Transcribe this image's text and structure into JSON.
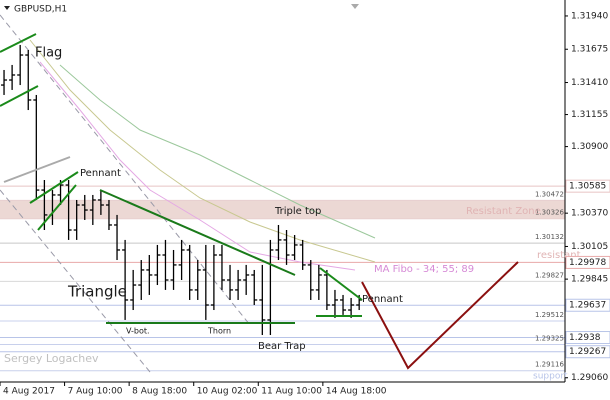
{
  "chart_data": {
    "type": "ohlc",
    "title": "GBPUSD,H1",
    "color": "#000000",
    "x": [
      2,
      6,
      10,
      14,
      18,
      22,
      26,
      30,
      34,
      38,
      42,
      46,
      50,
      54,
      58,
      62,
      66,
      70,
      74,
      78,
      82,
      86,
      90,
      94,
      98,
      102,
      106,
      110,
      114,
      118,
      122,
      126,
      130,
      134,
      138,
      142,
      146,
      150,
      154,
      158,
      162,
      166,
      170,
      174,
      178
    ],
    "open": [
      1.3139,
      1.3143,
      1.3147,
      1.31629,
      1.31271,
      1.30554,
      1.30356,
      1.30515,
      1.30594,
      1.30236,
      1.30435,
      1.30395,
      1.30475,
      1.30435,
      1.30276,
      1.30077,
      1.29679,
      1.29798,
      1.29918,
      1.29878,
      1.30037,
      1.29838,
      1.29958,
      1.30077,
      1.29759,
      1.29918,
      1.29639,
      1.30037,
      1.29838,
      1.29759,
      1.29838,
      1.29878,
      1.29679,
      1.2952,
      1.30077,
      1.30157,
      1.30037,
      1.30117,
      1.29958,
      1.29759,
      1.29878,
      1.29639,
      1.29679,
      1.29599,
      1.29639
    ],
    "high": [
      1.3151,
      1.3155,
      1.31709,
      1.31669,
      1.31311,
      1.30634,
      1.30554,
      1.30634,
      1.30634,
      1.30475,
      1.30515,
      1.30515,
      1.30554,
      1.30475,
      1.30356,
      1.30157,
      1.29918,
      1.29997,
      1.30037,
      1.30117,
      1.30157,
      1.30077,
      1.30157,
      1.30117,
      1.29997,
      1.30117,
      1.30117,
      1.30117,
      1.29958,
      1.29918,
      1.29958,
      1.29918,
      1.29958,
      1.30157,
      1.30276,
      1.30236,
      1.30196,
      1.30157,
      1.29997,
      1.29958,
      1.29918,
      1.29759,
      1.29719,
      1.29695,
      1.29719
    ],
    "low": [
      1.31311,
      1.31351,
      1.3139,
      1.31191,
      1.30475,
      1.30236,
      1.30276,
      1.30435,
      1.30157,
      1.30157,
      1.30316,
      1.30276,
      1.30356,
      1.30236,
      1.29997,
      1.2952,
      1.29599,
      1.29679,
      1.29719,
      1.29798,
      1.29759,
      1.29759,
      1.29838,
      1.29679,
      1.29679,
      1.2952,
      1.29599,
      1.29759,
      1.29679,
      1.29679,
      1.29719,
      1.29639,
      1.294,
      1.294,
      1.29997,
      1.29958,
      1.29997,
      1.29918,
      1.29679,
      1.29679,
      1.29599,
      1.29536,
      1.2956,
      1.29536,
      1.29599
    ],
    "close": [
      1.3143,
      1.3147,
      1.31629,
      1.31271,
      1.30554,
      1.30356,
      1.30515,
      1.30594,
      1.30236,
      1.30435,
      1.30395,
      1.30475,
      1.30435,
      1.30276,
      1.30077,
      1.29679,
      1.29798,
      1.29918,
      1.29878,
      1.30037,
      1.29838,
      1.29958,
      1.30077,
      1.29759,
      1.29918,
      1.29639,
      1.30037,
      1.29838,
      1.29759,
      1.29838,
      1.29878,
      1.29679,
      1.2952,
      1.30077,
      1.30157,
      1.30037,
      1.30117,
      1.29958,
      1.29759,
      1.29878,
      1.29639,
      1.29679,
      1.29599,
      1.29639,
      1.29679
    ],
    "xlim": [
      0,
      280
    ],
    "xticks": [
      {
        "value": 0,
        "label": "4 Aug 2017"
      },
      {
        "value": 32,
        "label": "7 Aug 10:00"
      },
      {
        "value": 64,
        "label": "8 Aug 18:00"
      },
      {
        "value": 96,
        "label": "10 Aug 02:00"
      },
      {
        "value": 128,
        "label": "11 Aug 10:00"
      },
      {
        "value": 160,
        "label": "14 Aug 18:00"
      }
    ],
    "ylim": [
      1.29026,
      1.32067
    ],
    "yticks": [
      {
        "value": 1.3194,
        "label": "1.31940"
      },
      {
        "value": 1.31675,
        "label": "1.31675"
      },
      {
        "value": 1.3141,
        "label": "1.31410"
      },
      1.31155,
      {
        "value": 1.309,
        "label": "1.30900"
      },
      {
        "value": 1.3037,
        "label": "1.30370"
      },
      1.30105,
      1.29845,
      {
        "value": 1.2906,
        "label": "1.29060"
      }
    ],
    "levels": [
      {
        "value": 1.30585,
        "boxed": true,
        "color": "#e8c4c4"
      },
      {
        "value": 1.30472,
        "boxed": false,
        "color": "#e8cfcf"
      },
      {
        "value": 1.30326,
        "boxed": false,
        "color": "#e8cfcf"
      },
      {
        "value": 1.30132,
        "boxed": false,
        "color": "#c8c8c8"
      },
      {
        "value": 1.29978,
        "boxed": true,
        "color": "#e8a8a8"
      },
      {
        "value": 1.29827,
        "boxed": false,
        "color": "#d8d8d8"
      },
      {
        "value": 1.29637,
        "boxed": true,
        "color": "#b8c4e8"
      },
      {
        "value": 1.29512,
        "boxed": false,
        "color": "#c8d0ec"
      },
      {
        "value": 1.2938,
        "boxed": true,
        "color": "#b8c4e8"
      },
      {
        "value": 1.29325,
        "boxed": false,
        "color": "#c8d0ec"
      },
      {
        "value": 1.29267,
        "boxed": true,
        "color": "#b8c4e8"
      },
      {
        "value": 1.29116,
        "boxed": false,
        "color": "#c8d0ec"
      }
    ],
    "annotations": [
      "Flag",
      "Pennant",
      "Triangle",
      "Triple top",
      "Resistant Zone",
      "resistant",
      "MA Fibo - 34; 55; 89",
      "Pennant",
      "V-bot.",
      "Thorn",
      "Bear Trap",
      "Sergey Logachev",
      "support"
    ]
  }
}
